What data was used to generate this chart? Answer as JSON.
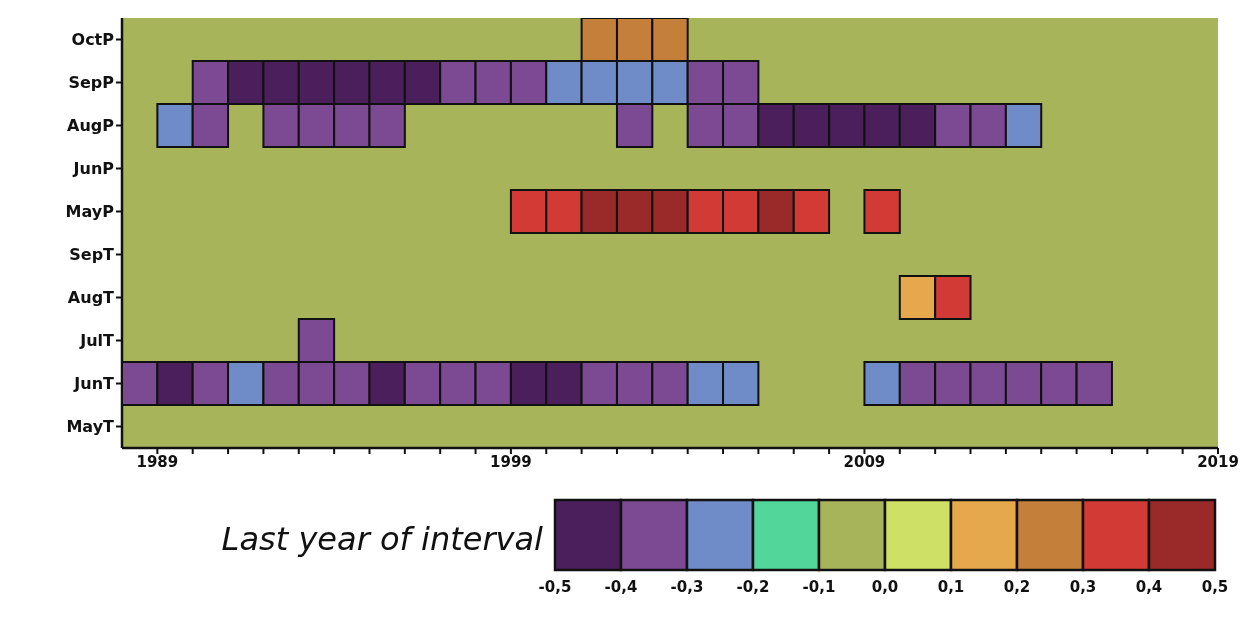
{
  "chart_data": {
    "type": "heatmap",
    "xlabel": "Last year of interval",
    "x": [
      1988.5,
      1989.5,
      1990.5,
      1991.5,
      1992.5,
      1993.5,
      1994.5,
      1995.5,
      1996.5,
      1997.5,
      1998.5,
      1999.5,
      2000.5,
      2001.5,
      2002.5,
      2003.5,
      2004.5,
      2005.5,
      2006.5,
      2007.5,
      2008.5,
      2009.5,
      2010.5,
      2011.5,
      2012.5,
      2013.5,
      2014.5,
      2015.5
    ],
    "xlim": [
      1988,
      2019
    ],
    "xticks": [
      {
        "value": 1989,
        "label": "1989"
      },
      {
        "value": 1990,
        "label": null
      },
      {
        "value": 1991,
        "label": null
      },
      {
        "value": 1992,
        "label": null
      },
      {
        "value": 1993,
        "label": null
      },
      {
        "value": 1994,
        "label": null
      },
      {
        "value": 1995,
        "label": null
      },
      {
        "value": 1996,
        "label": null
      },
      {
        "value": 1997,
        "label": null
      },
      {
        "value": 1998,
        "label": null
      },
      {
        "value": 1999,
        "label": "1999"
      },
      {
        "value": 2000,
        "label": null
      },
      {
        "value": 2001,
        "label": null
      },
      {
        "value": 2002,
        "label": null
      },
      {
        "value": 2003,
        "label": null
      },
      {
        "value": 2004,
        "label": null
      },
      {
        "value": 2005,
        "label": null
      },
      {
        "value": 2006,
        "label": null
      },
      {
        "value": 2007,
        "label": null
      },
      {
        "value": 2008,
        "label": null
      },
      {
        "value": 2009,
        "label": "2009"
      },
      {
        "value": 2010,
        "label": null
      },
      {
        "value": 2011,
        "label": null
      },
      {
        "value": 2012,
        "label": null
      },
      {
        "value": 2013,
        "label": null
      },
      {
        "value": 2014,
        "label": null
      },
      {
        "value": 2015,
        "label": null
      },
      {
        "value": 2016,
        "label": null
      },
      {
        "value": 2017,
        "label": null
      },
      {
        "value": 2018,
        "label": null
      },
      {
        "value": 2019,
        "label": "2019"
      }
    ],
    "y_categories": [
      "OctP",
      "SepP",
      "AugP",
      "JunP",
      "MayP",
      "SepT",
      "AugT",
      "JulT",
      "JunT",
      "MayT"
    ],
    "cells": [
      [
        null,
        null,
        null,
        null,
        null,
        null,
        null,
        null,
        null,
        null,
        null,
        null,
        null,
        0.25,
        0.25,
        0.25,
        null,
        null,
        null,
        null,
        null,
        null,
        null,
        null,
        null,
        null,
        null,
        null
      ],
      [
        null,
        null,
        -0.35,
        -0.45,
        -0.45,
        -0.45,
        -0.45,
        -0.45,
        -0.45,
        -0.35,
        -0.35,
        -0.35,
        -0.25,
        -0.25,
        -0.25,
        -0.25,
        -0.35,
        -0.35,
        null,
        null,
        null,
        null,
        null,
        null,
        null,
        null,
        null,
        null
      ],
      [
        null,
        -0.25,
        -0.35,
        null,
        -0.35,
        -0.35,
        -0.35,
        -0.35,
        null,
        null,
        null,
        null,
        null,
        null,
        -0.35,
        null,
        -0.35,
        -0.35,
        -0.45,
        -0.45,
        -0.45,
        -0.45,
        -0.45,
        -0.35,
        -0.35,
        -0.25,
        null,
        null
      ],
      [
        null,
        null,
        null,
        null,
        null,
        null,
        null,
        null,
        null,
        null,
        null,
        null,
        null,
        null,
        null,
        null,
        null,
        null,
        null,
        null,
        null,
        null,
        null,
        null,
        null,
        null,
        null,
        null
      ],
      [
        null,
        null,
        null,
        null,
        null,
        null,
        null,
        null,
        null,
        null,
        null,
        0.35,
        0.35,
        0.45,
        0.45,
        0.45,
        0.35,
        0.35,
        0.45,
        0.35,
        null,
        0.35,
        null,
        null,
        null,
        null,
        null,
        null
      ],
      [
        null,
        null,
        null,
        null,
        null,
        null,
        null,
        null,
        null,
        null,
        null,
        null,
        null,
        null,
        null,
        null,
        null,
        null,
        null,
        null,
        null,
        null,
        null,
        null,
        null,
        null,
        null,
        null
      ],
      [
        null,
        null,
        null,
        null,
        null,
        null,
        null,
        null,
        null,
        null,
        null,
        null,
        null,
        null,
        null,
        null,
        null,
        null,
        null,
        null,
        null,
        null,
        0.15,
        0.35,
        null,
        null,
        null,
        null
      ],
      [
        null,
        null,
        null,
        null,
        null,
        -0.35,
        null,
        null,
        null,
        null,
        null,
        null,
        null,
        null,
        null,
        null,
        null,
        null,
        null,
        null,
        null,
        null,
        null,
        null,
        null,
        null,
        null,
        null
      ],
      [
        -0.35,
        -0.45,
        -0.35,
        -0.25,
        -0.35,
        -0.35,
        -0.35,
        -0.45,
        -0.35,
        -0.35,
        -0.35,
        -0.45,
        -0.45,
        -0.35,
        -0.35,
        -0.35,
        -0.25,
        -0.25,
        null,
        null,
        null,
        -0.25,
        -0.35,
        -0.35,
        -0.35,
        -0.35,
        -0.35,
        -0.35
      ],
      [
        null,
        null,
        null,
        null,
        null,
        null,
        null,
        null,
        null,
        null,
        null,
        null,
        null,
        null,
        null,
        null,
        null,
        null,
        null,
        null,
        null,
        null,
        null,
        null,
        null,
        null,
        null,
        null
      ]
    ],
    "clim": [
      -0.5,
      0.5
    ],
    "cticks": [
      {
        "value": -0.5,
        "label": "-0,5"
      },
      {
        "value": -0.4,
        "label": "-0,4"
      },
      {
        "value": -0.3,
        "label": "-0,3"
      },
      {
        "value": -0.2,
        "label": "-0,2"
      },
      {
        "value": -0.1,
        "label": "-0,1"
      },
      {
        "value": 0,
        "label": "0,0"
      },
      {
        "value": 0.1,
        "label": "0,1"
      },
      {
        "value": 0.2,
        "label": "0,2"
      },
      {
        "value": 0.3,
        "label": "0,3"
      },
      {
        "value": 0.4,
        "label": "0,4"
      },
      {
        "value": 0.5,
        "label": "0,5"
      }
    ]
  }
}
